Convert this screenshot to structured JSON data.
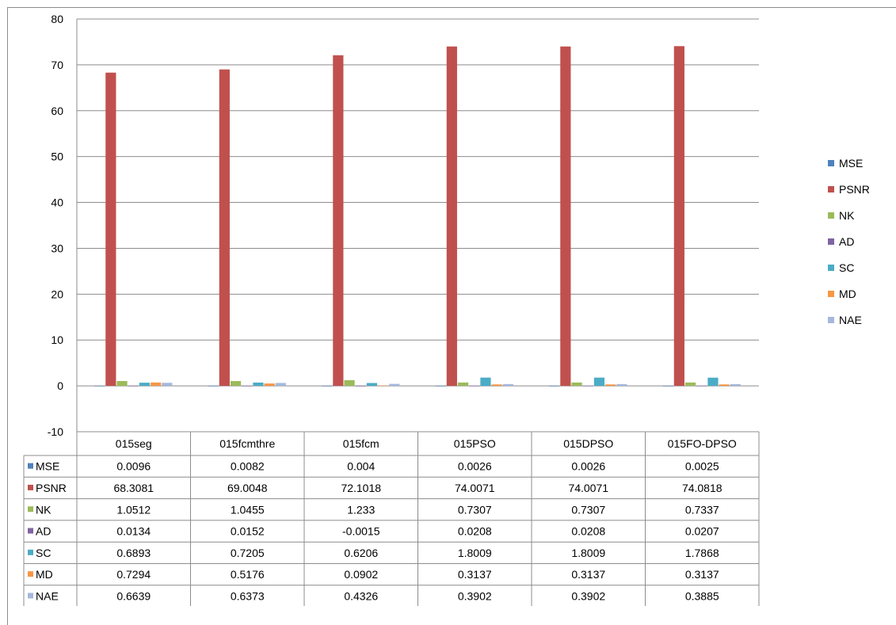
{
  "chart_data": {
    "type": "bar",
    "title": "",
    "xlabel": "",
    "ylabel": "",
    "ylim": [
      -10,
      80
    ],
    "yticks": [
      -10,
      0,
      10,
      20,
      30,
      40,
      50,
      60,
      70,
      80
    ],
    "grid": "horizontal",
    "legend_position": "right",
    "has_data_table": true,
    "categories": [
      "015seg",
      "015fcmthre",
      "015fcm",
      "015PSO",
      "015DPSO",
      "015FO-DPSO"
    ],
    "series": [
      {
        "name": "MSE",
        "color": "#4f81bd",
        "values": [
          0.0096,
          0.0082,
          0.004,
          0.0026,
          0.0026,
          0.0025
        ],
        "labels": [
          "0.0096",
          "0.0082",
          "0.004",
          "0.0026",
          "0.0026",
          "0.0025"
        ]
      },
      {
        "name": "PSNR",
        "color": "#c0504d",
        "values": [
          68.3081,
          69.0048,
          72.1018,
          74.0071,
          74.0071,
          74.0818
        ],
        "labels": [
          "68.3081",
          "69.0048",
          "72.1018",
          "74.0071",
          "74.0071",
          "74.0818"
        ]
      },
      {
        "name": "NK",
        "color": "#9bbb59",
        "values": [
          1.0512,
          1.0455,
          1.233,
          0.7307,
          0.7307,
          0.7337
        ],
        "labels": [
          "1.0512",
          "1.0455",
          "1.233",
          "0.7307",
          "0.7307",
          "0.7337"
        ]
      },
      {
        "name": "AD",
        "color": "#8064a2",
        "values": [
          0.0134,
          0.0152,
          -0.0015,
          0.0208,
          0.0208,
          0.0207
        ],
        "labels": [
          "0.0134",
          "0.0152",
          "-0.0015",
          "0.0208",
          "0.0208",
          "0.0207"
        ]
      },
      {
        "name": "SC",
        "color": "#4bacc6",
        "values": [
          0.6893,
          0.7205,
          0.6206,
          1.8009,
          1.8009,
          1.7868
        ],
        "labels": [
          "0.6893",
          "0.7205",
          "0.6206",
          "1.8009",
          "1.8009",
          "1.7868"
        ]
      },
      {
        "name": "MD",
        "color": "#f79646",
        "values": [
          0.7294,
          0.5176,
          0.0902,
          0.3137,
          0.3137,
          0.3137
        ],
        "labels": [
          "0.7294",
          "0.5176",
          "0.0902",
          "0.3137",
          "0.3137",
          "0.3137"
        ]
      },
      {
        "name": "NAE",
        "color": "#a5b8dc",
        "values": [
          0.6639,
          0.6373,
          0.4326,
          0.3902,
          0.3902,
          0.3885
        ],
        "labels": [
          "0.6639",
          "0.6373",
          "0.4326",
          "0.3902",
          "0.3902",
          "0.3885"
        ]
      }
    ]
  }
}
